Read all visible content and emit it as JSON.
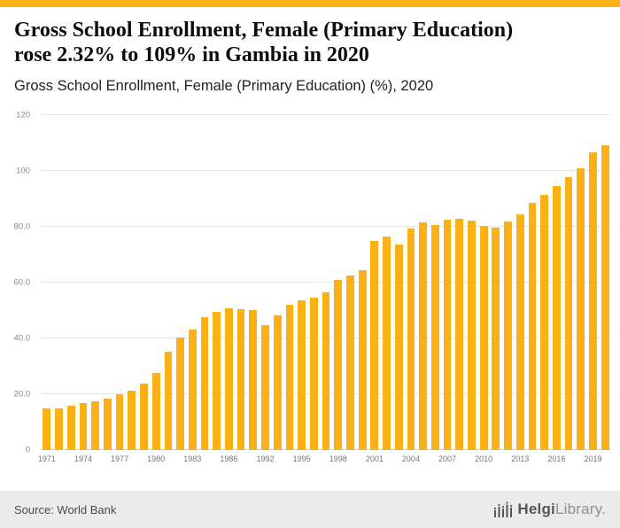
{
  "header": {
    "title_line1": "Gross School Enrollment, Female (Primary Education)",
    "title_line2": "rose 2.32% to 109% in Gambia in 2020",
    "subtitle": "Gross School Enrollment, Female (Primary Education) (%), 2020"
  },
  "colors": {
    "accent": "#FBB116",
    "top_stripe": "#FBB116",
    "gridline": "#E6E6E6",
    "footer_bg": "#EBEBEB"
  },
  "chart_data": {
    "type": "bar",
    "title": "Gross School Enrollment, Female (Primary Education) (%), 2020",
    "xlabel": "",
    "ylabel": "",
    "ylim": [
      0,
      120
    ],
    "grid": true,
    "legend": "none",
    "bar_color": "#FBB116",
    "y_ticks": [
      "0",
      "20.0",
      "40.0",
      "60.0",
      "80.0",
      "100",
      "120"
    ],
    "x_tick_labels": [
      "1971",
      "1974",
      "1977",
      "1980",
      "1983",
      "1986",
      "1992",
      "1995",
      "1998",
      "2001",
      "2004",
      "2007",
      "2010",
      "2013",
      "2016",
      "2019"
    ],
    "categories": [
      1971,
      1972,
      1973,
      1974,
      1975,
      1976,
      1977,
      1978,
      1979,
      1980,
      1981,
      1982,
      1983,
      1984,
      1985,
      1986,
      1987,
      1991,
      1992,
      1993,
      1994,
      1995,
      1996,
      1997,
      1998,
      1999,
      2000,
      2001,
      2002,
      2003,
      2004,
      2005,
      2006,
      2007,
      2008,
      2009,
      2010,
      2011,
      2012,
      2013,
      2014,
      2015,
      2016,
      2017,
      2018,
      2019,
      2020
    ],
    "values": [
      14.8,
      14.9,
      15.9,
      16.9,
      17.4,
      18.5,
      19.9,
      21.3,
      23.9,
      27.7,
      35.4,
      40.4,
      43.1,
      47.7,
      49.6,
      50.9,
      50.4,
      50.1,
      44.9,
      48.4,
      52.1,
      53.6,
      54.7,
      56.6,
      61.0,
      62.7,
      64.5,
      74.9,
      76.4,
      73.5,
      79.4,
      81.5,
      80.5,
      82.6,
      83.0,
      82.1,
      80.4,
      79.8,
      82.0,
      84.5,
      88.5,
      91.5,
      94.5,
      97.7,
      101.0,
      106.6,
      109.1
    ]
  },
  "footer": {
    "source": "Source: World Bank",
    "logo_bold": "Helgi",
    "logo_light": "Library.",
    "logo_icon": "bar-chart-icon"
  }
}
